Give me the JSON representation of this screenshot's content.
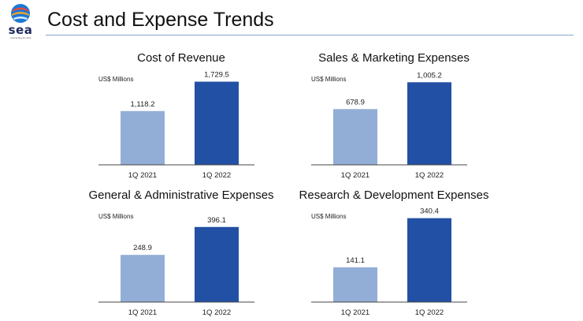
{
  "header": {
    "title": "Cost and Expense Trends",
    "logo_word": "sea",
    "logo_tagline": "Connecting the dots"
  },
  "colors": {
    "bar_2021": "#93aed6",
    "bar_2022": "#2250a4",
    "rule": "#8aa2cf",
    "axis": "#444444"
  },
  "chart_data": [
    {
      "type": "bar",
      "title": "Cost of Revenue",
      "ylabel": "US$ Millions",
      "categories": [
        "1Q 2021",
        "1Q 2022"
      ],
      "values": [
        1118.2,
        1729.5
      ],
      "value_labels": [
        "1,118.2",
        "1,729.5"
      ],
      "ylim": [
        0,
        2050
      ]
    },
    {
      "type": "bar",
      "title": "Sales & Marketing Expenses",
      "ylabel": "US$ Millions",
      "categories": [
        "1Q 2021",
        "1Q 2022"
      ],
      "values": [
        678.9,
        1005.2
      ],
      "value_labels": [
        "678.9",
        "1,005.2"
      ],
      "ylim": [
        0,
        1200
      ]
    },
    {
      "type": "bar",
      "title": "General & Administrative Expenses",
      "ylabel": "US$ Millions",
      "categories": [
        "1Q 2021",
        "1Q 2022"
      ],
      "values": [
        248.9,
        396.1
      ],
      "value_labels": [
        "248.9",
        "396.1"
      ],
      "ylim": [
        0,
        520
      ]
    },
    {
      "type": "bar",
      "title": "Research & Development Expenses",
      "ylabel": "US$ Millions",
      "categories": [
        "1Q 2021",
        "1Q 2022"
      ],
      "values": [
        141.1,
        340.4
      ],
      "value_labels": [
        "141.1",
        "340.4"
      ],
      "ylim": [
        0,
        400
      ]
    }
  ]
}
